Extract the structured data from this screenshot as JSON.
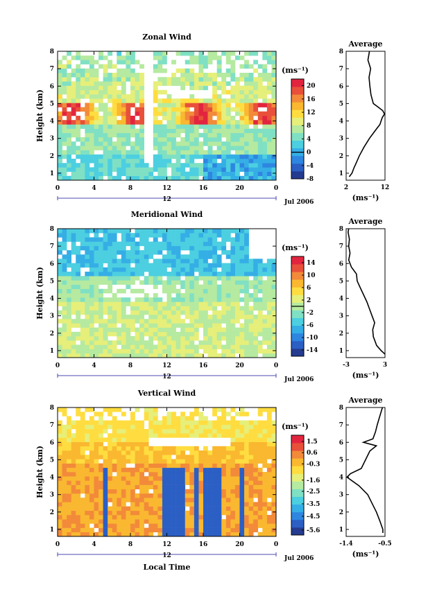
{
  "colors": [
    "#243b8f",
    "#2b5fc4",
    "#2e86e0",
    "#35aee6",
    "#4ccfe0",
    "#7fe0c4",
    "#b5eaa0",
    "#e6ef7a",
    "#ffdd40",
    "#f9b830",
    "#f28a3a",
    "#e8503a",
    "#e2253f"
  ],
  "xlabel": "Local Time",
  "chart_data": [
    {
      "type": "heatmap",
      "title": "Zonal Wind",
      "ylabel": "Height (km)",
      "xlim": [
        0,
        24
      ],
      "ylim": [
        0.6,
        8
      ],
      "x_ticks": [
        "0",
        "4",
        "8",
        "12",
        "16",
        "20",
        "0"
      ],
      "y_ticks": [
        "1",
        "2",
        "3",
        "4",
        "5",
        "6",
        "7",
        "8"
      ],
      "date_center": "12",
      "date_right": "Jul 2006",
      "colorbar": {
        "unit": "(ms⁻¹)",
        "min": -8,
        "max": 22,
        "labels": [
          "20",
          "16",
          "12",
          "8",
          "4",
          "0",
          "-4",
          "-8"
        ],
        "zero_line": 0
      },
      "average": {
        "title": "Average",
        "xlabel": "(ms⁻¹)",
        "xlim": [
          2,
          12
        ],
        "xtick_labels": [
          "2",
          "12"
        ],
        "height": [
          0.8,
          1.0,
          1.3,
          1.6,
          2.0,
          2.5,
          3.0,
          3.3,
          3.6,
          3.8,
          4.0,
          4.2,
          4.4,
          4.6,
          4.8,
          5.0,
          5.5,
          6.0,
          6.5,
          7.0,
          7.5,
          8.0
        ],
        "value": [
          2.8,
          3.5,
          4.0,
          4.6,
          5.4,
          6.6,
          8.0,
          9.0,
          10.0,
          10.7,
          11.0,
          11.3,
          11.9,
          11.4,
          10.2,
          9.0,
          8.4,
          8.1,
          7.9,
          8.3,
          7.6,
          8.0
        ]
      }
    },
    {
      "type": "heatmap",
      "title": "Meridional Wind",
      "ylabel": "Height (km)",
      "xlim": [
        0,
        24
      ],
      "ylim": [
        0.6,
        8
      ],
      "x_ticks": [
        "0",
        "4",
        "8",
        "12",
        "16",
        "20",
        "0"
      ],
      "y_ticks": [
        "1",
        "2",
        "3",
        "4",
        "5",
        "6",
        "7",
        "8"
      ],
      "date_center": "12",
      "date_right": "Jul 2006",
      "colorbar": {
        "unit": "(ms⁻¹)",
        "min": -16,
        "max": 16,
        "labels": [
          "14",
          "10",
          "6",
          "2",
          "-2",
          "-6",
          "-10",
          "-14"
        ],
        "zero_line": 0
      },
      "average": {
        "title": "Average",
        "xlabel": "(ms⁻¹)",
        "xlim": [
          -3,
          3
        ],
        "xtick_labels": [
          "-3",
          "3"
        ],
        "height": [
          0.8,
          1.0,
          1.3,
          1.8,
          2.2,
          2.6,
          3.0,
          3.4,
          3.8,
          4.2,
          4.6,
          5.0,
          5.4,
          5.8,
          6.2,
          6.6,
          7.0,
          7.4,
          7.8,
          8.0
        ],
        "value": [
          3.0,
          2.4,
          1.7,
          1.2,
          1.1,
          1.4,
          1.0,
          0.6,
          0.2,
          -0.3,
          -0.8,
          -1.3,
          -1.4,
          -2.2,
          -2.6,
          -2.4,
          -2.6,
          -2.5,
          -2.7,
          -2.6
        ]
      }
    },
    {
      "type": "heatmap",
      "title": "Vertical Wind",
      "ylabel": "Height (km)",
      "xlim": [
        0,
        24
      ],
      "ylim": [
        0.6,
        8
      ],
      "x_ticks": [
        "0",
        "4",
        "8",
        "12",
        "16",
        "20",
        "0"
      ],
      "y_ticks": [
        "1",
        "2",
        "3",
        "4",
        "5",
        "6",
        "7",
        "8"
      ],
      "date_center": "12",
      "date_right": "Jul 2006",
      "colorbar": {
        "unit": "(ms⁻¹)",
        "min": -6.0,
        "max": 2.0,
        "labels": [
          "1.5",
          "0.6",
          "-0.3",
          "-1.6",
          "-2.5",
          "-3.5",
          "-4.5",
          "-5.6"
        ],
        "zero_line": null
      },
      "average": {
        "title": "Average",
        "xlabel": "(ms⁻¹)",
        "xlim": [
          -1.4,
          -0.5
        ],
        "xtick_labels": [
          "-1.4",
          "-0.5"
        ],
        "height": [
          0.8,
          1.0,
          1.5,
          2.0,
          2.5,
          3.0,
          3.5,
          4.0,
          4.2,
          4.5,
          5.0,
          5.5,
          5.8,
          6.0,
          6.2,
          6.6,
          7.0,
          7.5,
          8.0
        ],
        "value": [
          -0.55,
          -0.55,
          -0.62,
          -0.7,
          -0.8,
          -0.9,
          -1.1,
          -1.38,
          -1.3,
          -1.05,
          -0.95,
          -0.85,
          -0.7,
          -1.0,
          -0.78,
          -0.72,
          -0.68,
          -0.62,
          -0.56
        ]
      }
    }
  ]
}
